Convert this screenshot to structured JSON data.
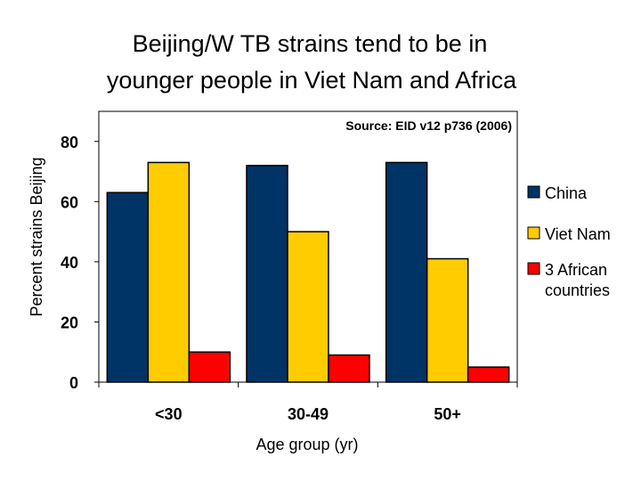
{
  "chart_data": {
    "type": "bar",
    "title_lines": [
      "Beijing/W TB strains tend to be in",
      "younger people in Viet Nam and Africa"
    ],
    "source": "Source: EID v12 p736 (2006)",
    "xlabel": "Age group (yr)",
    "ylabel": "Percent strains Beijing",
    "categories": [
      "<30",
      "30-49",
      "50+"
    ],
    "ylim": [
      0,
      90
    ],
    "yticks": [
      0,
      20,
      40,
      60,
      80
    ],
    "grid": false,
    "legend_position": "right",
    "series": [
      {
        "name": "China",
        "values": [
          63,
          72,
          73
        ],
        "color": "#003366"
      },
      {
        "name": "Viet Nam",
        "values": [
          73,
          50,
          41
        ],
        "color": "#FFCC00"
      },
      {
        "name": "3 African countries",
        "legend_lines": [
          "3 African",
          "countries"
        ],
        "values": [
          10,
          9,
          5
        ],
        "color": "#FF0000"
      }
    ]
  }
}
